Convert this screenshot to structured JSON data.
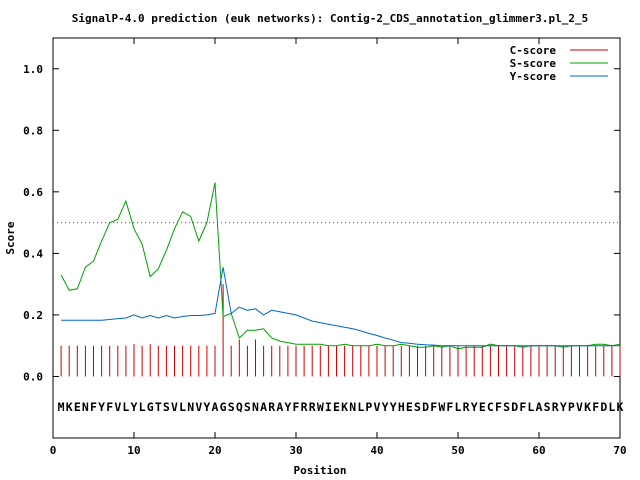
{
  "chart_data": {
    "type": "line",
    "title": "SignalP-4.0 prediction (euk networks): Contig-2_CDS_annotation_glimmer3.pl_2_5",
    "xlabel": "Position",
    "ylabel": "Score",
    "xlim": [
      0,
      70
    ],
    "ylim": [
      -0.2,
      1.1
    ],
    "x_ticks": [
      0,
      10,
      20,
      30,
      40,
      50,
      60,
      70
    ],
    "x_tick_labels": [
      "0",
      "10",
      "20",
      "30",
      "40",
      "50",
      "60",
      "70"
    ],
    "y_ticks": [
      0.0,
      0.2,
      0.4,
      0.6,
      0.8,
      1.0
    ],
    "y_tick_labels": [
      "0.0",
      "0.2",
      "0.4",
      "0.6",
      "0.8",
      "1.0"
    ],
    "threshold": 0.5,
    "sequence": "MKENFYFVLYLGTSVLNVYAGSQSNARAYFRRWIEKNLPVYYHESDFWFLRYECFSDFLASRYPVKFDLK",
    "legend_position": "top-right",
    "grid": false,
    "series": [
      {
        "name": "C-score",
        "style": "impulses",
        "color": "#cc0000",
        "x": [
          1,
          2,
          3,
          4,
          5,
          6,
          7,
          8,
          9,
          10,
          11,
          12,
          13,
          14,
          15,
          16,
          17,
          18,
          19,
          20,
          21,
          22,
          23,
          24,
          25,
          26,
          27,
          28,
          29,
          30,
          31,
          32,
          33,
          34,
          35,
          36,
          37,
          38,
          39,
          40,
          41,
          42,
          43,
          44,
          45,
          46,
          47,
          48,
          49,
          50,
          51,
          52,
          53,
          54,
          55,
          56,
          57,
          58,
          59,
          60,
          61,
          62,
          63,
          64,
          65,
          66,
          67,
          68,
          69,
          70
        ],
        "y": [
          0.1,
          0.1,
          0.1,
          0.1,
          0.1,
          0.1,
          0.1,
          0.1,
          0.1,
          0.105,
          0.1,
          0.105,
          0.1,
          0.1,
          0.1,
          0.1,
          0.1,
          0.1,
          0.1,
          0.1,
          0.3,
          0.1,
          0.12,
          0.1,
          0.12,
          0.1,
          0.1,
          0.1,
          0.1,
          0.1,
          0.1,
          0.1,
          0.1,
          0.1,
          0.1,
          0.1,
          0.1,
          0.1,
          0.1,
          0.1,
          0.1,
          0.1,
          0.1,
          0.1,
          0.1,
          0.1,
          0.1,
          0.1,
          0.1,
          0.1,
          0.1,
          0.1,
          0.1,
          0.1,
          0.1,
          0.1,
          0.1,
          0.1,
          0.1,
          0.1,
          0.1,
          0.1,
          0.1,
          0.1,
          0.1,
          0.1,
          0.1,
          0.1,
          0.1,
          0.1
        ]
      },
      {
        "name": "S-score",
        "style": "line",
        "color": "#00a000",
        "x": [
          1,
          2,
          3,
          4,
          5,
          6,
          7,
          8,
          9,
          10,
          11,
          12,
          13,
          14,
          15,
          16,
          17,
          18,
          19,
          20,
          21,
          22,
          23,
          24,
          25,
          26,
          27,
          28,
          29,
          30,
          31,
          32,
          33,
          34,
          35,
          36,
          37,
          38,
          39,
          40,
          41,
          42,
          43,
          44,
          45,
          46,
          47,
          48,
          49,
          50,
          51,
          52,
          53,
          54,
          55,
          56,
          57,
          58,
          59,
          60,
          61,
          62,
          63,
          64,
          65,
          66,
          67,
          68,
          69,
          70
        ],
        "y": [
          0.33,
          0.28,
          0.285,
          0.355,
          0.375,
          0.44,
          0.5,
          0.51,
          0.57,
          0.48,
          0.43,
          0.325,
          0.35,
          0.41,
          0.48,
          0.535,
          0.52,
          0.44,
          0.5,
          0.63,
          0.195,
          0.205,
          0.125,
          0.15,
          0.15,
          0.155,
          0.125,
          0.115,
          0.11,
          0.105,
          0.105,
          0.105,
          0.105,
          0.1,
          0.1,
          0.105,
          0.1,
          0.1,
          0.1,
          0.105,
          0.1,
          0.1,
          0.105,
          0.1,
          0.095,
          0.095,
          0.1,
          0.095,
          0.1,
          0.09,
          0.095,
          0.095,
          0.095,
          0.105,
          0.1,
          0.1,
          0.1,
          0.095,
          0.1,
          0.1,
          0.1,
          0.1,
          0.095,
          0.1,
          0.1,
          0.1,
          0.105,
          0.105,
          0.1,
          0.105
        ]
      },
      {
        "name": "Y-score",
        "style": "line",
        "color": "#0066cc",
        "x": [
          1,
          2,
          3,
          4,
          5,
          6,
          7,
          8,
          9,
          10,
          11,
          12,
          13,
          14,
          15,
          16,
          17,
          18,
          19,
          20,
          21,
          22,
          23,
          24,
          25,
          26,
          27,
          28,
          29,
          30,
          31,
          32,
          33,
          34,
          35,
          36,
          37,
          38,
          39,
          40,
          41,
          42,
          43,
          44,
          45,
          46,
          47,
          48,
          49,
          50,
          51,
          52,
          53,
          54,
          55,
          56,
          57,
          58,
          59,
          60,
          61,
          62,
          63,
          64,
          65,
          66,
          67,
          68,
          69,
          70
        ],
        "y": [
          0.183,
          0.183,
          0.183,
          0.183,
          0.183,
          0.183,
          0.185,
          0.188,
          0.19,
          0.2,
          0.19,
          0.198,
          0.19,
          0.198,
          0.19,
          0.195,
          0.198,
          0.198,
          0.2,
          0.205,
          0.355,
          0.205,
          0.225,
          0.215,
          0.22,
          0.2,
          0.215,
          0.21,
          0.205,
          0.2,
          0.19,
          0.18,
          0.175,
          0.17,
          0.165,
          0.16,
          0.155,
          0.148,
          0.14,
          0.133,
          0.125,
          0.118,
          0.11,
          0.108,
          0.105,
          0.103,
          0.102,
          0.1,
          0.1,
          0.1,
          0.1,
          0.1,
          0.1,
          0.1,
          0.1,
          0.1,
          0.1,
          0.1,
          0.1,
          0.1,
          0.1,
          0.1,
          0.1,
          0.1,
          0.1,
          0.1,
          0.1,
          0.1,
          0.1,
          0.1
        ]
      }
    ]
  }
}
